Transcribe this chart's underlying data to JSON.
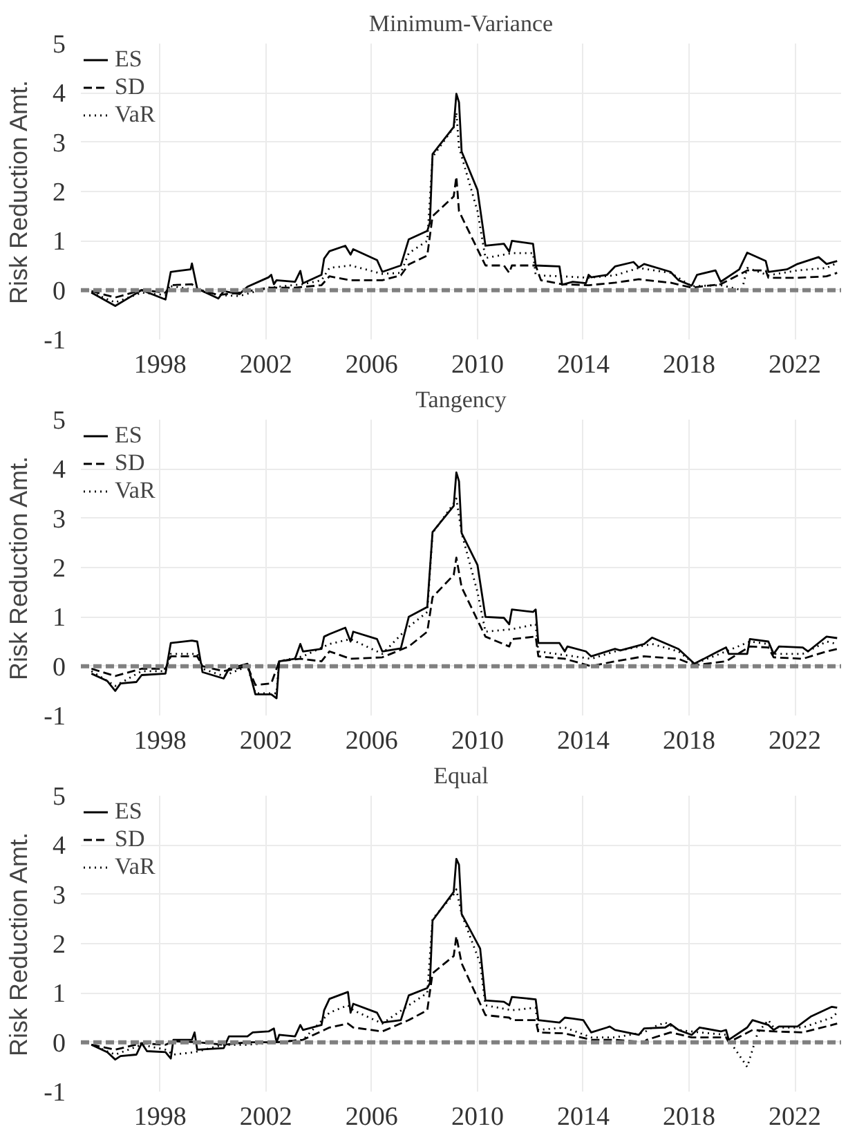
{
  "chart_data": [
    {
      "type": "line",
      "title": "Minimum-Variance",
      "ylabel": "Risk Reduction Amt.",
      "xlim": [
        1995.0,
        2023.75
      ],
      "ylim": [
        -1,
        5
      ],
      "xticks": [
        1998,
        2002,
        2006,
        2010,
        2014,
        2018,
        2022
      ],
      "yticks": [
        -1,
        0,
        1,
        2,
        3,
        4,
        5
      ],
      "grid": true,
      "legend": "top left",
      "ref_lines": [
        {
          "axis": "y",
          "value": 0,
          "label": null,
          "color": "#808080",
          "line_style": "dashed"
        }
      ],
      "series": [
        {
          "name": "ES",
          "color": "#000000",
          "line_style": "solid",
          "x": [
            1995.4,
            1996.3,
            1997.3,
            1998.2,
            1998.4,
            1999.15,
            1999.2,
            1999.4,
            2000.2,
            2000.4,
            2001.0,
            2001.3,
            2002.1,
            2002.2,
            2002.3,
            2002.4,
            2003.1,
            2003.3,
            2003.4,
            2004.1,
            2004.2,
            2004.4,
            2005.0,
            2005.2,
            2005.3,
            2006.2,
            2006.4,
            2007.1,
            2007.4,
            2008.1,
            2008.2,
            2008.3,
            2009.1,
            2009.2,
            2009.3,
            2009.4,
            2010.0,
            2010.3,
            2011.0,
            2011.2,
            2011.3,
            2012.1,
            2012.2,
            2013.1,
            2013.2,
            2013.6,
            2014.1,
            2014.2,
            2014.3,
            2014.9,
            2015.2,
            2015.9,
            2016.1,
            2016.3,
            2017.3,
            2017.6,
            2018.1,
            2018.3,
            2019.0,
            2019.2,
            2019.9,
            2020.2,
            2020.9,
            2021.0,
            2021.7,
            2022.1,
            2022.9,
            2023.2,
            2023.6
          ],
          "values": [
            -0.05,
            -0.32,
            0,
            -0.19,
            0.37,
            0.42,
            0.54,
            0.03,
            -0.17,
            -0.02,
            -0.08,
            0.07,
            0.26,
            0.31,
            0.12,
            0.2,
            0.17,
            0.39,
            0.14,
            0.31,
            0.64,
            0.79,
            0.9,
            0.72,
            0.83,
            0.61,
            0.37,
            0.5,
            1.03,
            1.2,
            1.37,
            2.76,
            3.31,
            3.98,
            3.81,
            2.81,
            2.03,
            0.9,
            0.94,
            0.78,
            1.0,
            0.94,
            0.5,
            0.48,
            0.11,
            0.17,
            0.14,
            0.31,
            0.26,
            0.31,
            0.48,
            0.57,
            0.46,
            0.53,
            0.37,
            0.2,
            0.09,
            0.31,
            0.4,
            0.17,
            0.42,
            0.76,
            0.59,
            0.37,
            0.42,
            0.53,
            0.67,
            0.53,
            0.59
          ]
        },
        {
          "name": "SD",
          "color": "#000000",
          "line_style": "dashed",
          "x": [
            1995.4,
            1996.3,
            1997.3,
            1998.2,
            1998.4,
            1999.2,
            1999.4,
            2000.2,
            2001.0,
            2002.1,
            2003.1,
            2004.1,
            2004.4,
            2005.2,
            2006.4,
            2007.1,
            2007.4,
            2008.1,
            2008.3,
            2009.1,
            2009.2,
            2009.3,
            2010.3,
            2011.0,
            2011.2,
            2011.3,
            2012.2,
            2012.4,
            2013.2,
            2014.2,
            2015.2,
            2016.1,
            2017.3,
            2018.1,
            2019.2,
            2020.2,
            2020.9,
            2021.0,
            2022.1,
            2023.2,
            2023.6
          ],
          "values": [
            -0.02,
            -0.15,
            0.0,
            -0.05,
            0.1,
            0.12,
            0.02,
            -0.1,
            -0.05,
            0.05,
            0.05,
            0.1,
            0.28,
            0.2,
            0.2,
            0.3,
            0.52,
            0.7,
            1.5,
            1.9,
            2.3,
            1.6,
            0.5,
            0.5,
            0.35,
            0.5,
            0.5,
            0.2,
            0.12,
            0.1,
            0.15,
            0.22,
            0.15,
            0.05,
            0.12,
            0.4,
            0.4,
            0.25,
            0.25,
            0.28,
            0.35
          ]
        },
        {
          "name": "VaR",
          "color": "#000000",
          "line_style": "dotted",
          "x": [
            1995.4,
            1996.3,
            1997.3,
            1998.2,
            1998.4,
            1999.4,
            2000.2,
            2001.0,
            2002.1,
            2003.4,
            2004.1,
            2004.4,
            2005.2,
            2006.4,
            2007.1,
            2007.4,
            2008.1,
            2008.3,
            2009.1,
            2009.2,
            2009.3,
            2010.0,
            2010.3,
            2011.3,
            2012.1,
            2012.2,
            2013.2,
            2014.2,
            2015.2,
            2016.1,
            2017.3,
            2018.1,
            2019.2,
            2020.0,
            2020.2,
            2021.0,
            2022.1,
            2023.2,
            2023.6
          ],
          "values": [
            -0.05,
            -0.25,
            -0.05,
            -0.1,
            0.08,
            0.0,
            -0.1,
            -0.12,
            0.05,
            0.12,
            0.2,
            0.45,
            0.5,
            0.33,
            0.35,
            0.75,
            1.0,
            2.7,
            3.3,
            3.6,
            2.9,
            1.6,
            0.65,
            0.75,
            0.75,
            0.3,
            0.28,
            0.25,
            0.3,
            0.45,
            0.35,
            0.08,
            0.1,
            0.0,
            0.45,
            0.3,
            0.4,
            0.45,
            0.55
          ]
        }
      ]
    },
    {
      "type": "line",
      "title": "Tangency",
      "ylabel": "Risk Reduction Amt.",
      "xlim": [
        1995.0,
        2023.75
      ],
      "ylim": [
        -1,
        5
      ],
      "xticks": [
        1998,
        2002,
        2006,
        2010,
        2014,
        2018,
        2022
      ],
      "yticks": [
        -1,
        0,
        1,
        2,
        3,
        4,
        5
      ],
      "grid": true,
      "legend": "top left",
      "ref_lines": [
        {
          "axis": "y",
          "value": 0,
          "label": null,
          "color": "#808080",
          "line_style": "dashed"
        }
      ],
      "series": [
        {
          "name": "ES",
          "color": "#000000",
          "line_style": "solid",
          "x": [
            1995.4,
            1996.0,
            1996.3,
            1996.5,
            1997.1,
            1997.3,
            1998.2,
            1998.4,
            1999.2,
            1999.4,
            1999.6,
            2000.4,
            2000.6,
            2001.3,
            2001.6,
            2002.2,
            2002.4,
            2002.5,
            2003.1,
            2003.3,
            2003.4,
            2004.1,
            2004.2,
            2004.4,
            2005.0,
            2005.2,
            2005.3,
            2006.2,
            2006.4,
            2007.1,
            2007.4,
            2008.1,
            2008.3,
            2009.1,
            2009.2,
            2009.3,
            2009.4,
            2010.0,
            2010.3,
            2011.0,
            2011.2,
            2011.3,
            2012.1,
            2012.2,
            2012.3,
            2013.1,
            2013.3,
            2013.4,
            2014.1,
            2014.3,
            2015.2,
            2015.4,
            2016.3,
            2016.6,
            2017.6,
            2018.2,
            2019.1,
            2019.4,
            2019.5,
            2020.2,
            2020.3,
            2021.0,
            2021.2,
            2021.4,
            2022.3,
            2022.5,
            2023.2,
            2023.6
          ],
          "values": [
            -0.15,
            -0.3,
            -0.5,
            -0.35,
            -0.32,
            -0.18,
            -0.15,
            0.47,
            0.52,
            0.5,
            -0.12,
            -0.25,
            -0.05,
            0.05,
            -0.57,
            -0.57,
            -0.65,
            0.1,
            0.15,
            0.45,
            0.3,
            0.35,
            0.6,
            0.65,
            0.78,
            0.5,
            0.7,
            0.55,
            0.3,
            0.36,
            1.0,
            1.2,
            2.72,
            3.25,
            3.93,
            3.75,
            2.7,
            2.05,
            1.0,
            0.98,
            0.85,
            1.15,
            1.1,
            1.15,
            0.47,
            0.47,
            0.3,
            0.4,
            0.3,
            0.2,
            0.35,
            0.32,
            0.45,
            0.58,
            0.35,
            0.05,
            0.3,
            0.38,
            0.25,
            0.25,
            0.55,
            0.5,
            0.25,
            0.4,
            0.38,
            0.3,
            0.6,
            0.57
          ]
        },
        {
          "name": "SD",
          "color": "#000000",
          "line_style": "dashed",
          "x": [
            1995.4,
            1996.3,
            1997.3,
            1998.2,
            1998.4,
            1999.4,
            1999.6,
            2000.4,
            2001.3,
            2001.6,
            2002.2,
            2002.5,
            2003.3,
            2004.1,
            2004.4,
            2005.2,
            2006.4,
            2007.4,
            2008.1,
            2008.3,
            2009.1,
            2009.2,
            2009.4,
            2010.3,
            2011.2,
            2011.3,
            2012.2,
            2012.3,
            2013.3,
            2014.3,
            2015.2,
            2016.3,
            2017.6,
            2018.2,
            2019.4,
            2020.3,
            2021.0,
            2021.2,
            2022.3,
            2023.2,
            2023.6
          ],
          "values": [
            -0.05,
            -0.2,
            -0.05,
            -0.05,
            0.2,
            0.2,
            0.0,
            -0.1,
            0.0,
            -0.38,
            -0.35,
            0.1,
            0.15,
            0.1,
            0.3,
            0.15,
            0.18,
            0.4,
            0.7,
            1.4,
            1.85,
            2.2,
            1.6,
            0.6,
            0.4,
            0.55,
            0.6,
            0.2,
            0.15,
            0.0,
            0.1,
            0.2,
            0.15,
            0.02,
            0.1,
            0.4,
            0.38,
            0.18,
            0.15,
            0.3,
            0.35
          ]
        },
        {
          "name": "VaR",
          "color": "#000000",
          "line_style": "dotted",
          "x": [
            1995.4,
            1996.3,
            1997.3,
            1998.2,
            1998.4,
            1999.4,
            1999.6,
            2000.4,
            2001.3,
            2001.6,
            2002.4,
            2002.5,
            2003.4,
            2004.4,
            2005.2,
            2006.4,
            2007.4,
            2008.1,
            2008.3,
            2009.1,
            2009.2,
            2009.4,
            2010.0,
            2010.3,
            2011.3,
            2012.2,
            2012.3,
            2014.3,
            2015.2,
            2016.6,
            2017.6,
            2018.2,
            2019.4,
            2020.3,
            2021.0,
            2021.2,
            2022.3,
            2023.2,
            2023.6
          ],
          "values": [
            -0.1,
            -0.4,
            -0.1,
            -0.1,
            0.25,
            0.25,
            -0.05,
            -0.2,
            0.0,
            -0.55,
            -0.55,
            0.1,
            0.2,
            0.45,
            0.55,
            0.25,
            0.8,
            1.1,
            2.7,
            3.3,
            3.4,
            2.7,
            1.5,
            0.7,
            0.75,
            0.85,
            0.3,
            0.15,
            0.3,
            0.45,
            0.3,
            0.05,
            0.3,
            0.5,
            0.45,
            0.25,
            0.25,
            0.5,
            0.45
          ]
        }
      ]
    },
    {
      "type": "line",
      "title": "Equal",
      "ylabel": "Risk Reduction Amt.",
      "xlim": [
        1995.0,
        2023.75
      ],
      "ylim": [
        -1,
        5
      ],
      "xticks": [
        1998,
        2002,
        2006,
        2010,
        2014,
        2018,
        2022
      ],
      "yticks": [
        -1,
        0,
        1,
        2,
        3,
        4,
        5
      ],
      "grid": true,
      "legend": "top left",
      "ref_lines": [
        {
          "axis": "y",
          "value": 0,
          "label": null,
          "color": "#808080",
          "line_style": "dashed"
        }
      ],
      "series": [
        {
          "name": "ES",
          "color": "#000000",
          "line_style": "solid",
          "x": [
            1995.4,
            1996.0,
            1996.3,
            1996.5,
            1997.1,
            1997.3,
            1997.5,
            1998.2,
            1998.4,
            1998.5,
            1999.2,
            1999.3,
            1999.4,
            2000.4,
            2000.6,
            2001.3,
            2001.5,
            2002.1,
            2002.3,
            2002.4,
            2002.5,
            2003.1,
            2003.3,
            2003.4,
            2004.1,
            2004.2,
            2004.4,
            2005.1,
            2005.2,
            2005.3,
            2006.2,
            2006.4,
            2007.1,
            2007.4,
            2008.1,
            2008.2,
            2008.3,
            2009.1,
            2009.2,
            2009.3,
            2009.4,
            2010.1,
            2010.3,
            2011.0,
            2011.2,
            2011.3,
            2012.2,
            2012.3,
            2013.1,
            2013.3,
            2013.6,
            2014.0,
            2014.3,
            2014.9,
            2015.0,
            2015.2,
            2016.1,
            2016.3,
            2017.1,
            2017.3,
            2017.6,
            2018.1,
            2018.4,
            2019.2,
            2019.4,
            2019.5,
            2020.2,
            2020.4,
            2021.0,
            2021.2,
            2021.4,
            2022.1,
            2022.3,
            2022.6,
            2023.4,
            2023.6
          ],
          "values": [
            -0.05,
            -0.2,
            -0.35,
            -0.28,
            -0.25,
            -0.02,
            -0.18,
            -0.2,
            -0.33,
            0.05,
            0.05,
            0.2,
            -0.15,
            -0.12,
            0.12,
            0.12,
            0.2,
            0.22,
            0.28,
            0.0,
            0.15,
            0.12,
            0.35,
            0.25,
            0.35,
            0.65,
            0.88,
            1.02,
            0.6,
            0.78,
            0.6,
            0.4,
            0.45,
            0.95,
            1.1,
            1.2,
            2.47,
            3.05,
            3.72,
            3.6,
            2.6,
            1.9,
            0.85,
            0.82,
            0.75,
            0.92,
            0.87,
            0.45,
            0.4,
            0.5,
            0.48,
            0.45,
            0.2,
            0.3,
            0.32,
            0.25,
            0.15,
            0.28,
            0.3,
            0.37,
            0.25,
            0.15,
            0.3,
            0.22,
            0.25,
            0.05,
            0.3,
            0.45,
            0.35,
            0.25,
            0.32,
            0.32,
            0.4,
            0.52,
            0.72,
            0.7
          ]
        },
        {
          "name": "SD",
          "color": "#000000",
          "line_style": "dashed",
          "x": [
            1995.4,
            1996.3,
            1997.3,
            1998.2,
            1998.5,
            1999.4,
            2000.4,
            2001.3,
            2002.4,
            2003.4,
            2004.4,
            2005.1,
            2005.3,
            2006.4,
            2007.4,
            2008.1,
            2008.3,
            2009.1,
            2009.2,
            2009.4,
            2010.3,
            2011.2,
            2011.3,
            2012.2,
            2012.3,
            2013.3,
            2014.3,
            2015.2,
            2016.3,
            2016.4,
            2017.3,
            2018.1,
            2019.4,
            2019.5,
            2020.4,
            2021.2,
            2022.3,
            2023.4,
            2023.6
          ],
          "values": [
            -0.05,
            -0.15,
            -0.02,
            -0.05,
            0.02,
            0.0,
            -0.05,
            0.0,
            0.0,
            0.05,
            0.3,
            0.38,
            0.3,
            0.22,
            0.45,
            0.65,
            1.4,
            1.75,
            2.15,
            1.6,
            0.55,
            0.5,
            0.45,
            0.45,
            0.2,
            0.18,
            0.05,
            0.05,
            0.0,
            0.05,
            0.2,
            0.1,
            0.1,
            0.0,
            0.25,
            0.22,
            0.2,
            0.35,
            0.38
          ]
        },
        {
          "name": "VaR",
          "color": "#000000",
          "line_style": "dotted",
          "x": [
            1995.4,
            1996.3,
            1997.3,
            1998.2,
            1998.5,
            1999.3,
            2000.4,
            2001.3,
            2002.4,
            2003.4,
            2004.4,
            2005.1,
            2005.3,
            2006.4,
            2007.4,
            2008.1,
            2008.3,
            2009.1,
            2009.2,
            2009.4,
            2010.1,
            2010.3,
            2011.3,
            2012.2,
            2012.3,
            2013.3,
            2014.3,
            2015.2,
            2016.3,
            2016.6,
            2017.1,
            2017.6,
            2018.4,
            2019.4,
            2019.5,
            2020.2,
            2020.6,
            2021.0,
            2021.2,
            2022.3,
            2023.4,
            2023.6
          ],
          "values": [
            -0.05,
            -0.25,
            -0.05,
            -0.15,
            -0.25,
            -0.2,
            -0.05,
            -0.05,
            0.0,
            0.05,
            0.6,
            0.75,
            0.65,
            0.38,
            0.75,
            1.0,
            2.5,
            3.0,
            3.1,
            2.6,
            1.6,
            0.75,
            0.65,
            0.7,
            0.25,
            0.3,
            0.1,
            0.1,
            0.2,
            0.3,
            0.4,
            0.25,
            0.2,
            0.15,
            0.05,
            -0.5,
            0.2,
            0.45,
            0.3,
            0.3,
            0.5,
            0.6
          ]
        }
      ]
    }
  ]
}
